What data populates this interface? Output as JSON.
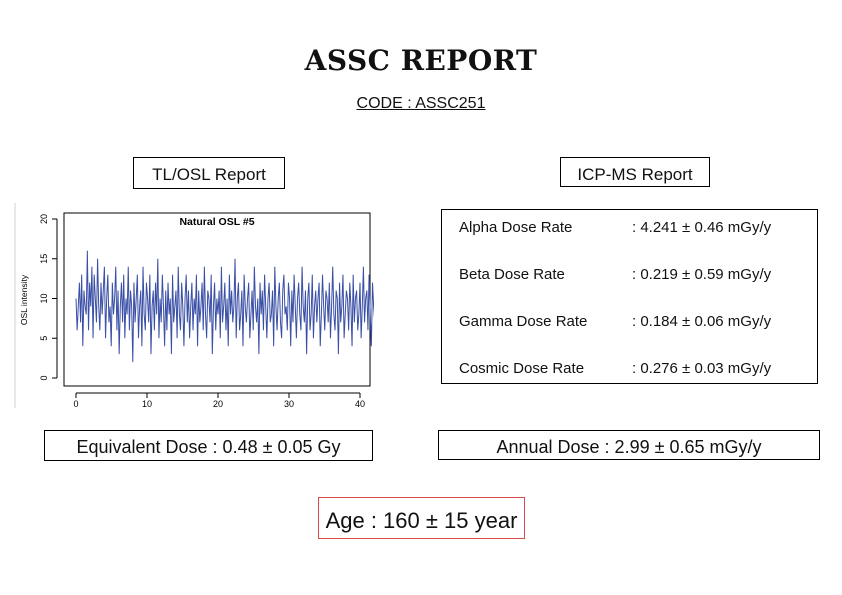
{
  "report": {
    "title": "ASSC REPORT",
    "code": "CODE : ASSC251",
    "tl_osl_heading": "TL/OSL Report",
    "icp_ms_heading": "ICP-MS Report",
    "equivalent_dose": "Equivalent Dose : 0.48 ± 0.05 Gy",
    "annual_dose": "Annual Dose : 2.99 ± 0.65 mGy/y",
    "age": "Age : 160 ± 15 year"
  },
  "dose_rates": [
    {
      "label": "Alpha Dose Rate",
      "value": ": 4.241 ± 0.46 mGy/y"
    },
    {
      "label": "Beta Dose Rate",
      "value": ": 0.219 ± 0.59 mGy/y"
    },
    {
      "label": "Gamma Dose Rate",
      "value": ": 0.184 ± 0.06 mGy/y"
    },
    {
      "label": "Cosmic Dose Rate",
      "value": ": 0.276 ± 0.03 mGy/y"
    }
  ],
  "colors": {
    "line": "#3a4fa6",
    "age_border": "#d94a4a"
  },
  "chart_data": {
    "type": "line",
    "title": "Natural OSL #5",
    "xlabel": "",
    "ylabel": "OSL intensity",
    "xlim": [
      0,
      40
    ],
    "ylim": [
      0,
      20
    ],
    "x_ticks": [
      0,
      10,
      20,
      30,
      40
    ],
    "y_ticks": [
      0,
      5,
      10,
      15,
      20
    ],
    "grid": false,
    "series": [
      {
        "x_start": 0,
        "x_step": 0.16,
        "values": [
          10,
          6,
          9,
          12,
          7,
          13,
          4,
          11,
          9,
          8,
          16,
          6,
          12,
          9,
          14,
          5,
          13,
          10,
          7,
          15,
          9,
          6,
          12,
          8,
          11,
          14,
          5,
          10,
          13,
          7,
          9,
          4,
          12,
          8,
          10,
          14,
          6,
          11,
          3,
          9,
          12,
          7,
          13,
          5,
          10,
          8,
          14,
          6,
          11,
          9,
          2,
          12,
          7,
          10,
          13,
          5,
          9,
          11,
          4,
          14,
          8,
          6,
          12,
          10,
          7,
          13,
          3,
          9,
          11,
          6,
          12,
          8,
          15,
          5,
          10,
          7,
          13,
          9,
          4,
          11,
          6,
          12,
          8,
          10,
          3,
          13,
          7,
          9,
          11,
          5,
          14,
          8,
          6,
          12,
          9,
          4,
          10,
          13,
          7,
          11,
          5,
          9,
          12,
          6,
          10,
          8,
          13,
          4,
          11,
          7,
          9,
          12,
          6,
          14,
          8,
          5,
          11,
          10,
          7,
          13,
          3,
          9,
          12,
          6,
          10,
          8,
          11,
          5,
          14,
          7,
          9,
          12,
          6,
          10,
          4,
          13,
          8,
          11,
          7,
          9,
          15,
          5,
          10,
          12,
          6,
          8,
          11,
          4,
          13,
          9,
          7,
          10,
          12,
          5,
          8,
          11,
          6,
          14,
          9,
          7,
          10,
          3,
          12,
          8,
          11,
          6,
          13,
          9,
          5,
          10,
          12,
          7,
          8,
          11,
          4,
          14,
          9,
          6,
          10,
          12,
          7,
          5,
          11,
          13,
          8,
          9,
          6,
          12,
          10,
          4,
          11,
          7,
          13,
          9,
          5,
          10,
          12,
          8,
          6,
          14,
          9,
          7,
          11,
          3,
          10,
          12,
          6,
          8,
          13,
          5,
          9,
          11,
          7,
          10,
          12,
          4,
          8,
          13,
          9,
          6,
          11,
          10,
          7,
          12,
          5,
          9,
          14,
          8,
          6,
          11,
          10,
          3,
          12,
          7,
          9,
          13,
          5,
          8,
          11,
          10,
          6,
          12,
          9,
          4,
          13,
          7,
          10,
          11,
          6,
          8,
          12,
          5,
          9,
          14,
          7,
          10,
          11,
          6,
          13,
          8,
          4,
          12,
          9,
          7,
          10,
          11,
          5,
          13,
          8,
          6,
          12,
          9,
          10,
          7,
          3
        ]
      }
    ]
  }
}
